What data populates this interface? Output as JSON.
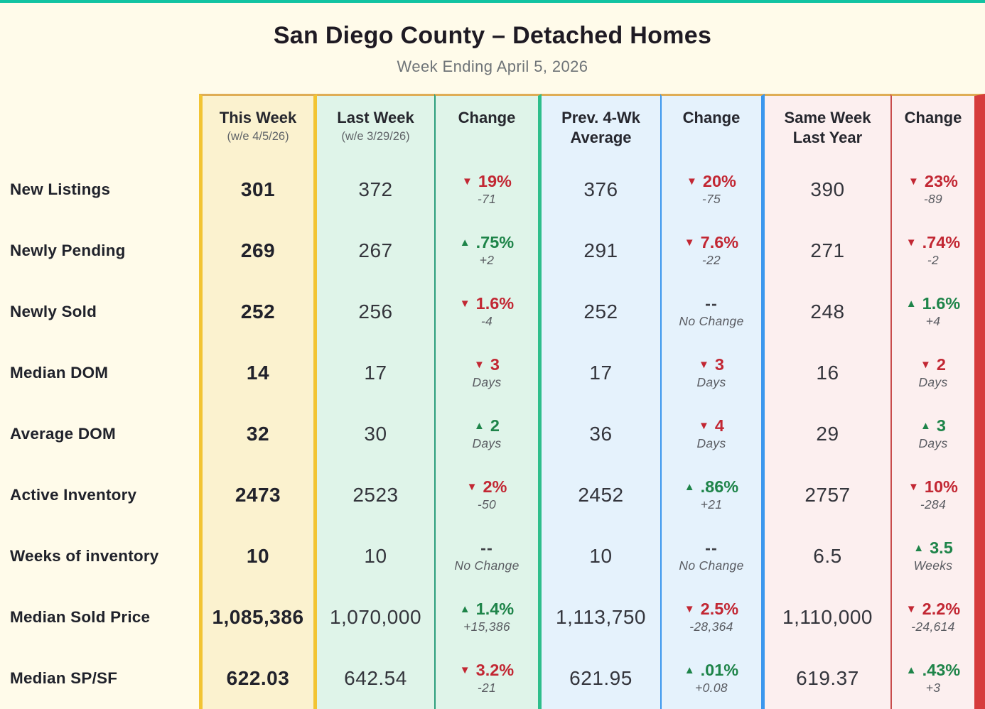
{
  "theme": {
    "teal": "#12C3A2",
    "tan": "#DFAD55",
    "gold": "#F2C433",
    "yellow-bg": "#FBF2CF",
    "mint": "#DFF4E9",
    "green": "#2EBE8B",
    "green-dk": "#2C9E7C",
    "blue": "#3B97EE",
    "blue-bg": "#E5F2FC",
    "pink": "#FCEFEF",
    "red": "#D63C3C",
    "red-dk": "#C84B4B",
    "red-text": "#C22733",
    "green-text": "#1E8449",
    "cream": "#FFFBEA"
  },
  "icons": {
    "down": "▼",
    "up": "▲"
  },
  "chart_data": {
    "type": "table",
    "title": "San Diego County – Detached Homes",
    "subtitle": "Week Ending April 5, 2026",
    "headers": {
      "this_week": {
        "line1": "This Week",
        "sub": "(w/e 4/5/26)"
      },
      "last_week": {
        "line1": "Last Week",
        "sub": "(w/e 3/29/26)"
      },
      "change_week": {
        "line1": "Change"
      },
      "prev_4wk": {
        "line1": "Prev. 4-Wk",
        "line2": "Average"
      },
      "change_4wk": {
        "line1": "Change"
      },
      "same_week_ly": {
        "line1": "Same Week",
        "line2": "Last Year"
      },
      "change_ly": {
        "line1": "Change"
      }
    },
    "rows": [
      {
        "label": "New Listings",
        "this_week": "301",
        "last_week": "372",
        "change_lw": {
          "dir": "down",
          "main": "19%",
          "sub": "-71"
        },
        "prev_4wk": "376",
        "change_4wk": {
          "dir": "down",
          "main": "20%",
          "sub": "-75"
        },
        "same_week_ly": "390",
        "change_ly": {
          "dir": "down",
          "main": "23%",
          "sub": "-89"
        }
      },
      {
        "label": "Newly Pending",
        "this_week": "269",
        "last_week": "267",
        "change_lw": {
          "dir": "up",
          "main": ".75%",
          "sub": "+2"
        },
        "prev_4wk": "291",
        "change_4wk": {
          "dir": "down",
          "main": "7.6%",
          "sub": "-22"
        },
        "same_week_ly": "271",
        "change_ly": {
          "dir": "down",
          "main": ".74%",
          "sub": "-2"
        }
      },
      {
        "label": "Newly Sold",
        "this_week": "252",
        "last_week": "256",
        "change_lw": {
          "dir": "down",
          "main": "1.6%",
          "sub": "-4"
        },
        "prev_4wk": "252",
        "change_4wk": {
          "dir": "none",
          "main": "--",
          "sub": "No Change"
        },
        "same_week_ly": "248",
        "change_ly": {
          "dir": "up",
          "main": "1.6%",
          "sub": "+4"
        }
      },
      {
        "label": "Median DOM",
        "this_week": "14",
        "last_week": "17",
        "change_lw": {
          "dir": "down",
          "main": "3",
          "sub": "Days"
        },
        "prev_4wk": "17",
        "change_4wk": {
          "dir": "down",
          "main": "3",
          "sub": "Days"
        },
        "same_week_ly": "16",
        "change_ly": {
          "dir": "down",
          "main": "2",
          "sub": "Days"
        }
      },
      {
        "label": "Average DOM",
        "this_week": "32",
        "last_week": "30",
        "change_lw": {
          "dir": "up",
          "main": "2",
          "sub": "Days"
        },
        "prev_4wk": "36",
        "change_4wk": {
          "dir": "down",
          "main": "4",
          "sub": "Days"
        },
        "same_week_ly": "29",
        "change_ly": {
          "dir": "up",
          "main": "3",
          "sub": "Days"
        }
      },
      {
        "label": "Active Inventory",
        "this_week": "2473",
        "last_week": "2523",
        "change_lw": {
          "dir": "down",
          "main": "2%",
          "sub": "-50"
        },
        "prev_4wk": "2452",
        "change_4wk": {
          "dir": "up",
          "main": ".86%",
          "sub": "+21"
        },
        "same_week_ly": "2757",
        "change_ly": {
          "dir": "down",
          "main": "10%",
          "sub": "-284"
        }
      },
      {
        "label": "Weeks of inventory",
        "this_week": "10",
        "last_week": "10",
        "change_lw": {
          "dir": "none",
          "main": "--",
          "sub": "No Change"
        },
        "prev_4wk": "10",
        "change_4wk": {
          "dir": "none",
          "main": "--",
          "sub": "No Change"
        },
        "same_week_ly": "6.5",
        "change_ly": {
          "dir": "up",
          "main": "3.5",
          "sub": "Weeks"
        }
      },
      {
        "label": "Median Sold Price",
        "this_week": "1,085,386",
        "last_week": "1,070,000",
        "change_lw": {
          "dir": "up",
          "main": "1.4%",
          "sub": "+15,386"
        },
        "prev_4wk": "1,113,750",
        "change_4wk": {
          "dir": "down",
          "main": "2.5%",
          "sub": "-28,364"
        },
        "same_week_ly": "1,110,000",
        "change_ly": {
          "dir": "down",
          "main": "2.2%",
          "sub": "-24,614"
        }
      },
      {
        "label": "Median SP/SF",
        "this_week": "622.03",
        "last_week": "642.54",
        "change_lw": {
          "dir": "down",
          "main": "3.2%",
          "sub": "-21"
        },
        "prev_4wk": "621.95",
        "change_4wk": {
          "dir": "up",
          "main": ".01%",
          "sub": "+0.08"
        },
        "same_week_ly": "619.37",
        "change_ly": {
          "dir": "up",
          "main": ".43%",
          "sub": "+3"
        }
      }
    ]
  }
}
